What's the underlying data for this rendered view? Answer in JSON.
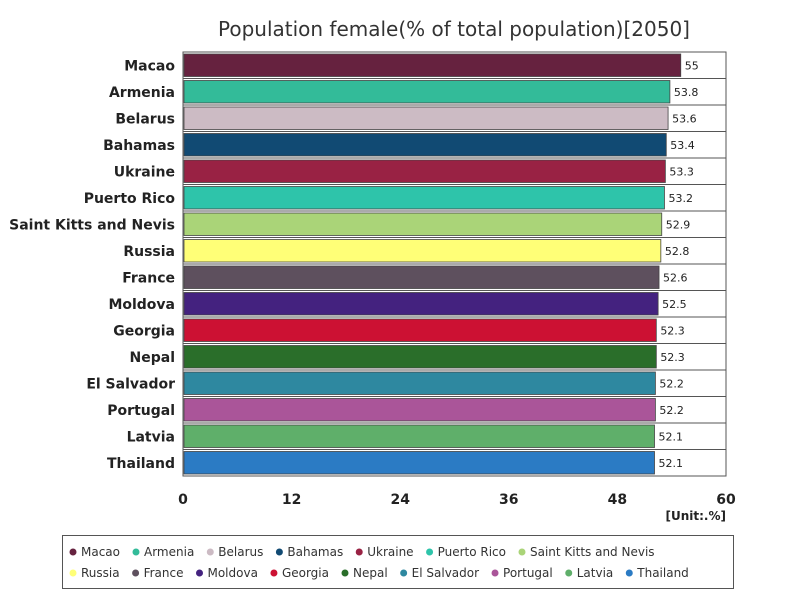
{
  "chart_data": {
    "type": "bar",
    "orientation": "horizontal",
    "title": "Population female(% of total population)[2050]",
    "unit_label": "[Unit:.%]",
    "xlim": [
      0,
      60
    ],
    "x_ticks": [
      "0",
      "12",
      "24",
      "36",
      "48",
      "60"
    ],
    "grid": false,
    "legend_position": "bottom",
    "categories": [
      "Macao",
      "Armenia",
      "Belarus",
      "Bahamas",
      "Ukraine",
      "Puerto Rico",
      "Saint Kitts and Nevis",
      "Russia",
      "France",
      "Moldova",
      "Georgia",
      "Nepal",
      "El Salvador",
      "Portugal",
      "Latvia",
      "Thailand"
    ],
    "values": [
      55,
      53.8,
      53.6,
      53.4,
      53.3,
      53.2,
      52.9,
      52.8,
      52.6,
      52.5,
      52.3,
      52.3,
      52.2,
      52.2,
      52.1,
      52.1
    ],
    "value_labels": [
      "55",
      "53.8",
      "53.6",
      "53.4",
      "53.3",
      "53.2",
      "52.9",
      "52.8",
      "52.6",
      "52.5",
      "52.3",
      "52.3",
      "52.2",
      "52.2",
      "52.1",
      "52.1"
    ],
    "colors": [
      "#66223f",
      "#33bb99",
      "#ccbbc4",
      "#114a73",
      "#992244",
      "#2ec4aa",
      "#aad478",
      "#ffff77",
      "#5e505e",
      "#44227f",
      "#cc1133",
      "#2a6e2a",
      "#2e88a0",
      "#aa5599",
      "#5faf6a",
      "#2b7bc4"
    ]
  }
}
